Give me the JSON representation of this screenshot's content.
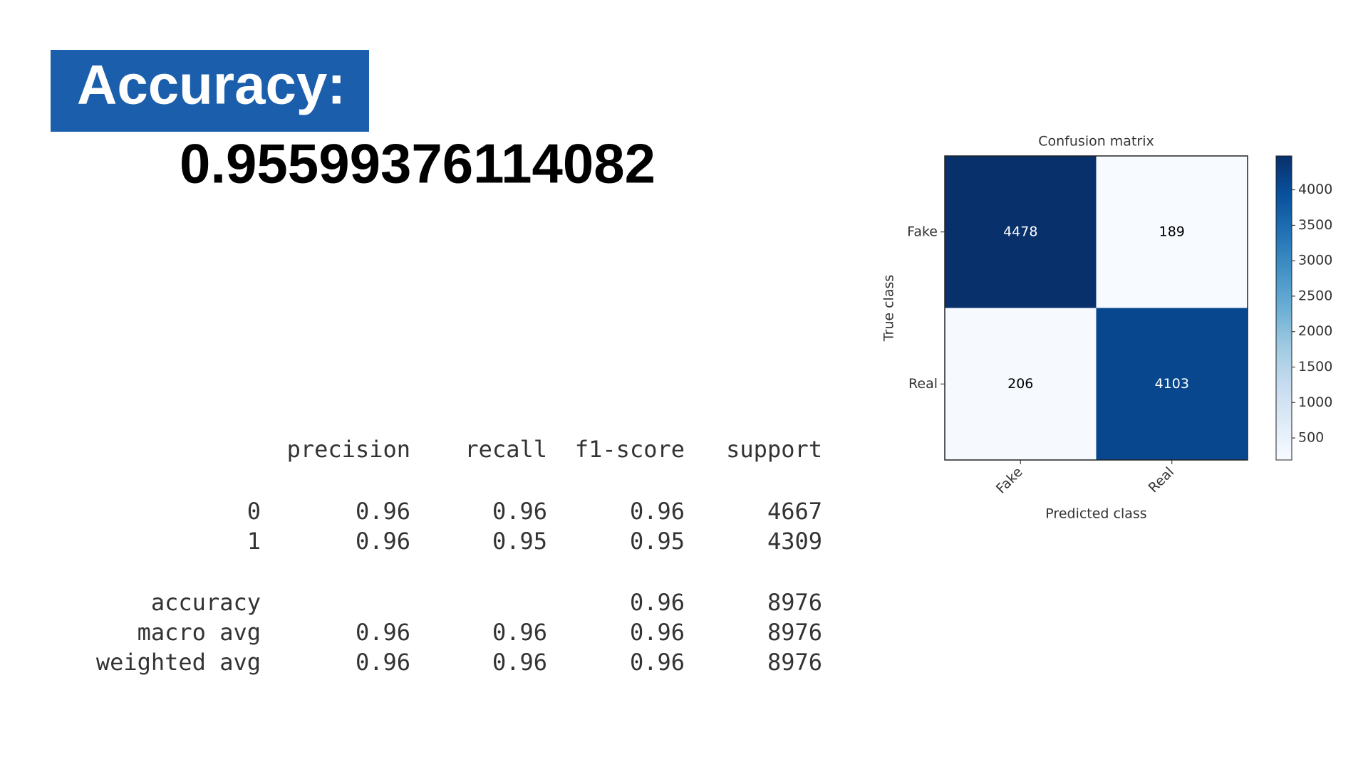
{
  "header": {
    "title": "Accuracy:",
    "accuracy": "0.95599376114082"
  },
  "report": {
    "columns": [
      "precision",
      "recall",
      "f1-score",
      "support"
    ],
    "rows": [
      [
        "0",
        "0.96",
        "0.96",
        "0.96",
        "4667"
      ],
      [
        "1",
        "0.96",
        "0.95",
        "0.95",
        "4309"
      ],
      [
        "accuracy",
        null,
        null,
        "0.96",
        "8976"
      ],
      [
        "macro avg",
        "0.96",
        "0.96",
        "0.96",
        "8976"
      ],
      [
        "weighted avg",
        "0.96",
        "0.96",
        "0.96",
        "8976"
      ]
    ]
  },
  "chart_data": {
    "type": "heatmap",
    "title": "Confusion matrix",
    "x_categories": [
      "Fake",
      "Real"
    ],
    "y_categories": [
      "Fake",
      "Real"
    ],
    "values": [
      [
        4478,
        189
      ],
      [
        206,
        4103
      ]
    ],
    "xlabel": "Predicted class",
    "ylabel": "True class",
    "colormap": "Blues",
    "clim": [
      189,
      4478
    ],
    "cbar_ticks": [
      500,
      1000,
      1500,
      2000,
      2500,
      3000,
      3500,
      4000
    ]
  }
}
